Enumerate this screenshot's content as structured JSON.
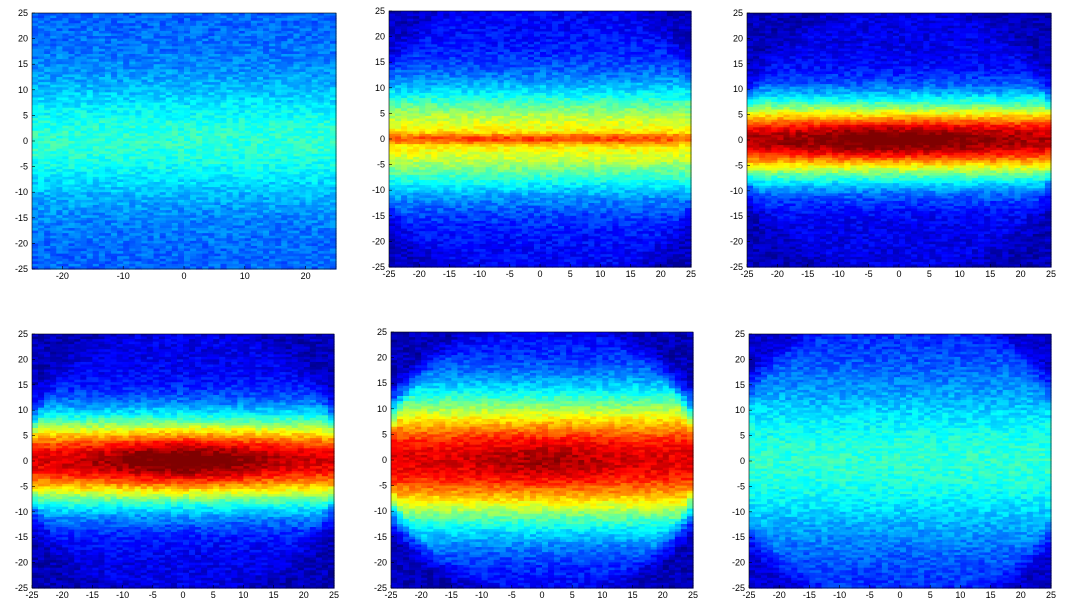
{
  "chart_data": [
    {
      "type": "heatmap",
      "panel": "top-left",
      "xlim": [
        -25,
        25
      ],
      "ylim": [
        -25,
        25
      ],
      "xticks": [
        -20,
        -10,
        0,
        10,
        20
      ],
      "yticks": [
        25,
        20,
        15,
        10,
        5,
        0,
        -5,
        -10,
        -15,
        -20,
        -25
      ],
      "colormap": "jet",
      "intensity": {
        "peak": 0.36,
        "band_peak": 0.06,
        "band_width": 9,
        "core_peak": 0.0,
        "core_half_y": 2,
        "core_half_x": 12,
        "disk_radius": 40,
        "edge_floor": 0.22
      }
    },
    {
      "type": "heatmap",
      "panel": "top-middle",
      "xlim": [
        -25,
        25
      ],
      "ylim": [
        -25,
        25
      ],
      "xticks": [
        -25,
        -20,
        -15,
        -10,
        -5,
        0,
        5,
        10,
        15,
        20,
        25
      ],
      "yticks": [
        25,
        20,
        15,
        10,
        5,
        0,
        -5,
        -10,
        -15,
        -20,
        -25
      ],
      "colormap": "jet",
      "intensity": {
        "peak": 0.5,
        "band_peak": 0.14,
        "band_width": 8,
        "core_peak": 0.18,
        "core_half_y": 0.7,
        "core_half_x": 40,
        "disk_radius": 27,
        "edge_floor": 0.12
      }
    },
    {
      "type": "heatmap",
      "panel": "top-right",
      "xlim": [
        -25,
        25
      ],
      "ylim": [
        -25,
        25
      ],
      "xticks": [
        -25,
        -20,
        -15,
        -10,
        -5,
        0,
        5,
        10,
        15,
        20,
        25
      ],
      "yticks": [
        25,
        20,
        15,
        10,
        5,
        0,
        -5,
        -10,
        -15,
        -20,
        -25
      ],
      "colormap": "jet",
      "intensity": {
        "peak": 0.7,
        "band_peak": 0.22,
        "band_width": 6,
        "core_peak": 0.12,
        "core_half_y": 2.5,
        "core_half_x": 14,
        "disk_radius": 25,
        "edge_floor": 0.1
      }
    },
    {
      "type": "heatmap",
      "panel": "bottom-left",
      "xlim": [
        -25,
        25
      ],
      "ylim": [
        -25,
        25
      ],
      "xticks": [
        -25,
        -20,
        -15,
        -10,
        -5,
        0,
        5,
        10,
        15,
        20,
        25
      ],
      "yticks": [
        25,
        20,
        15,
        10,
        5,
        0,
        -5,
        -10,
        -15,
        -20,
        -25
      ],
      "colormap": "jet",
      "intensity": {
        "peak": 0.6,
        "band_peak": 0.3,
        "band_width": 7,
        "core_peak": 0.14,
        "core_half_y": 4,
        "core_half_x": 10,
        "disk_radius": 25,
        "edge_floor": 0.1
      }
    },
    {
      "type": "heatmap",
      "panel": "bottom-middle",
      "xlim": [
        -25,
        25
      ],
      "ylim": [
        -25,
        25
      ],
      "xticks": [
        -25,
        -20,
        -15,
        -10,
        -5,
        0,
        5,
        10,
        15,
        20,
        25
      ],
      "yticks": [
        25,
        20,
        15,
        10,
        5,
        0,
        -5,
        -10,
        -15,
        -20,
        -25
      ],
      "colormap": "jet",
      "intensity": {
        "peak": 0.68,
        "band_peak": 0.22,
        "band_width": 10,
        "core_peak": 0.06,
        "core_half_y": 4,
        "core_half_x": 8,
        "disk_radius": 25,
        "edge_floor": 0.1
      }
    },
    {
      "type": "heatmap",
      "panel": "bottom-right",
      "xlim": [
        -25,
        25
      ],
      "ylim": [
        -25,
        25
      ],
      "xticks": [
        -25,
        -20,
        -15,
        -10,
        -5,
        0,
        5,
        10,
        15,
        20,
        25
      ],
      "yticks": [
        25,
        20,
        15,
        10,
        5,
        0,
        -5,
        -10,
        -15,
        -20,
        -25
      ],
      "colormap": "jet",
      "intensity": {
        "peak": 0.4,
        "band_peak": 0.02,
        "band_width": 12,
        "core_peak": 0.0,
        "core_half_y": 2,
        "core_half_x": 12,
        "disk_radius": 27,
        "edge_floor": 0.14
      }
    }
  ]
}
